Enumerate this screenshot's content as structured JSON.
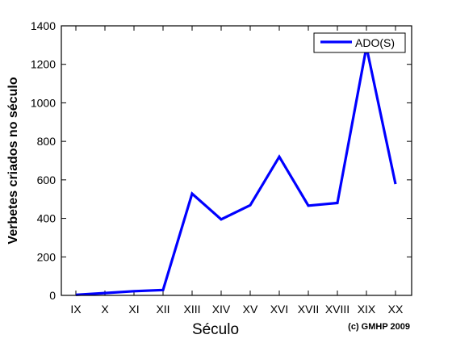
{
  "chart_data": {
    "type": "line",
    "title": "",
    "xlabel": "Século",
    "ylabel": "Verbetes criados no século",
    "categories": [
      "IX",
      "X",
      "XI",
      "XII",
      "XIII",
      "XIV",
      "XV",
      "XVI",
      "XVII",
      "XVIII",
      "XIX",
      "XX"
    ],
    "series": [
      {
        "name": "ADO(S)",
        "color": "#0000ff",
        "values": [
          3,
          12,
          22,
          28,
          528,
          395,
          468,
          720,
          466,
          480,
          1290,
          578
        ]
      }
    ],
    "ylim": [
      0,
      1400
    ],
    "yticks": [
      0,
      200,
      400,
      600,
      800,
      1000,
      1200,
      1400
    ],
    "grid": false,
    "legend_position": "top-right",
    "copyright": "(c) GMHP 2009"
  }
}
